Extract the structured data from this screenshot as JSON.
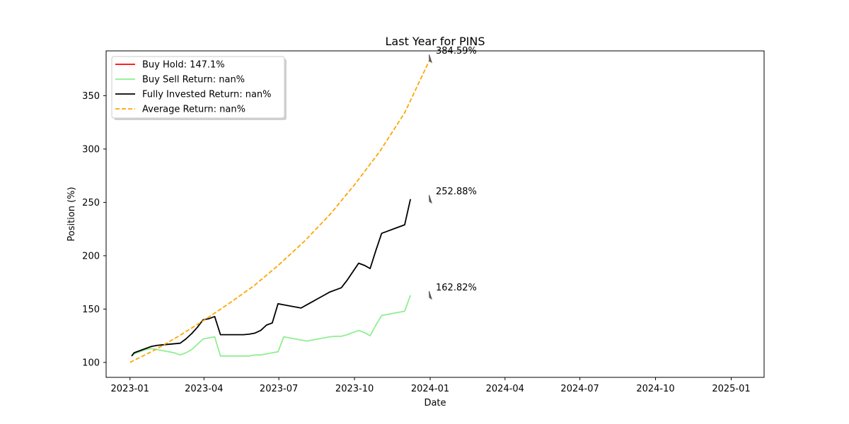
{
  "chart_data": {
    "type": "line",
    "title": "Last Year for PINS",
    "xlabel": "Date",
    "ylabel": "Position (%)",
    "xlim": [
      "2022-12-03",
      "2025-02-10"
    ],
    "ylim": [
      86,
      392
    ],
    "x_ticks": [
      {
        "date": "2023-01-01",
        "label": "2023-01"
      },
      {
        "date": "2023-04-01",
        "label": "2023-04"
      },
      {
        "date": "2023-07-01",
        "label": "2023-07"
      },
      {
        "date": "2023-10-01",
        "label": "2023-10"
      },
      {
        "date": "2024-01-01",
        "label": "2024-01"
      },
      {
        "date": "2024-04-01",
        "label": "2024-04"
      },
      {
        "date": "2024-07-01",
        "label": "2024-07"
      },
      {
        "date": "2024-10-01",
        "label": "2024-10"
      },
      {
        "date": "2025-01-01",
        "label": "2025-01"
      }
    ],
    "y_ticks": [
      100,
      150,
      200,
      250,
      300,
      350
    ],
    "grid": false,
    "legend_position": "top-left",
    "series": [
      {
        "name": "Buy Hold: 147.1%",
        "color": "#ff0000",
        "style": "solid",
        "x": [],
        "y": []
      },
      {
        "name": "Buy Sell Return: nan%",
        "color": "#90ee90",
        "style": "solid",
        "x": [
          "2023-01-03",
          "2023-01-06",
          "2023-01-13",
          "2023-01-20",
          "2023-01-27",
          "2023-02-03",
          "2023-02-10",
          "2023-02-17",
          "2023-02-24",
          "2023-03-03",
          "2023-03-10",
          "2023-03-17",
          "2023-03-24",
          "2023-03-31",
          "2023-04-07",
          "2023-04-14",
          "2023-04-21",
          "2023-04-28",
          "2023-05-05",
          "2023-05-12",
          "2023-05-19",
          "2023-05-26",
          "2023-06-02",
          "2023-06-09",
          "2023-06-16",
          "2023-06-23",
          "2023-06-30",
          "2023-07-07",
          "2023-07-14",
          "2023-07-21",
          "2023-07-28",
          "2023-08-04",
          "2023-08-11",
          "2023-08-18",
          "2023-08-25",
          "2023-09-01",
          "2023-09-08",
          "2023-09-15",
          "2023-09-22",
          "2023-09-29",
          "2023-10-06",
          "2023-10-13",
          "2023-10-20",
          "2023-10-27",
          "2023-11-03",
          "2023-11-10",
          "2023-11-17",
          "2023-11-24",
          "2023-12-01",
          "2023-12-08"
        ],
        "y": [
          106,
          108,
          110,
          112,
          113,
          112,
          111,
          110,
          109,
          107,
          109,
          112,
          117,
          122,
          123,
          124,
          106,
          106,
          106,
          106,
          106,
          106,
          107,
          107,
          108,
          109,
          110,
          124,
          123,
          122,
          121,
          120,
          121,
          122,
          123,
          124,
          124.5,
          124.5,
          126,
          128,
          130,
          128,
          125,
          135,
          144,
          145,
          146,
          147,
          148,
          163
        ]
      },
      {
        "name": "Fully Invested Return: nan%",
        "color": "#000000",
        "style": "solid",
        "x": [
          "2023-01-03",
          "2023-01-06",
          "2023-01-13",
          "2023-01-20",
          "2023-01-27",
          "2023-02-03",
          "2023-02-10",
          "2023-02-17",
          "2023-02-24",
          "2023-03-03",
          "2023-03-10",
          "2023-03-17",
          "2023-03-24",
          "2023-03-31",
          "2023-04-07",
          "2023-04-14",
          "2023-04-21",
          "2023-04-28",
          "2023-05-05",
          "2023-05-12",
          "2023-05-19",
          "2023-05-26",
          "2023-06-02",
          "2023-06-09",
          "2023-06-16",
          "2023-06-23",
          "2023-06-30",
          "2023-07-07",
          "2023-07-14",
          "2023-07-21",
          "2023-07-28",
          "2023-08-04",
          "2023-08-11",
          "2023-08-18",
          "2023-08-25",
          "2023-09-01",
          "2023-09-08",
          "2023-09-15",
          "2023-09-22",
          "2023-09-29",
          "2023-10-06",
          "2023-10-13",
          "2023-10-20",
          "2023-10-27",
          "2023-11-03",
          "2023-11-10",
          "2023-11-17",
          "2023-11-24",
          "2023-12-01",
          "2023-12-08"
        ],
        "y": [
          106,
          109,
          111,
          113,
          115,
          116,
          116.5,
          117,
          117.5,
          118,
          122,
          127,
          133,
          140,
          141,
          143,
          126,
          126,
          126,
          126,
          126,
          126.5,
          127.5,
          130,
          135,
          137,
          155,
          154,
          153,
          152,
          151,
          154,
          157,
          160,
          163,
          166,
          168,
          170,
          177,
          185,
          193,
          191,
          188,
          205,
          221,
          223,
          225,
          227,
          229,
          253
        ]
      },
      {
        "name": "Average Return: nan%",
        "color": "#ffa500",
        "style": "dashed",
        "x": [
          "2023-01-01",
          "2023-02-01",
          "2023-03-01",
          "2023-04-01",
          "2023-05-01",
          "2023-06-01",
          "2023-07-01",
          "2023-08-01",
          "2023-09-01",
          "2023-10-01",
          "2023-11-01",
          "2023-12-01",
          "2024-01-01"
        ],
        "y": [
          100,
          112,
          124.5,
          139.5,
          155,
          172,
          191.5,
          213.5,
          238.5,
          266.5,
          298,
          334,
          384.59
        ]
      }
    ],
    "annotations": [
      {
        "label": "384.59%",
        "x": "2024-01-01",
        "y": 384.59
      },
      {
        "label": "252.88%",
        "x": "2024-01-01",
        "y": 252.88
      },
      {
        "label": "162.82%",
        "x": "2024-01-01",
        "y": 162.82
      }
    ]
  }
}
